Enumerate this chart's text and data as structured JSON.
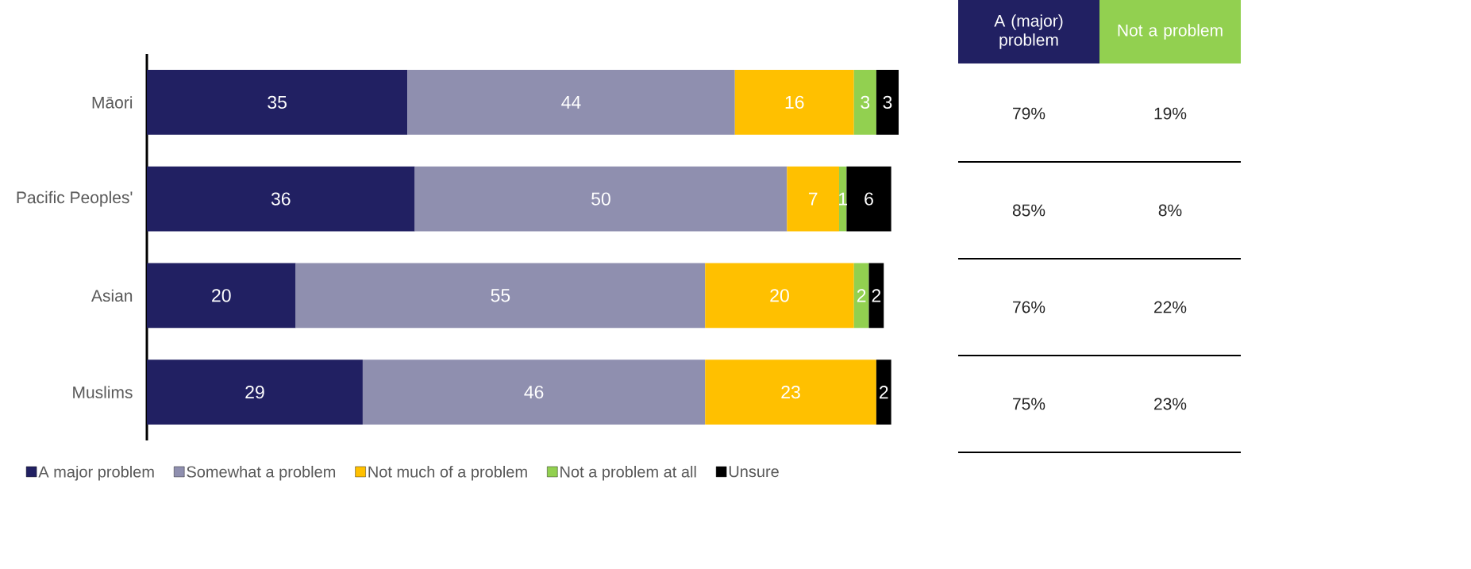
{
  "chart_data": {
    "type": "bar",
    "orientation": "horizontal",
    "stacked": true,
    "data_labels": true,
    "legend": "bottom",
    "tick_labels": "y",
    "categories": [
      "Māori",
      "Pacific Peoples'",
      "Asian",
      "Muslims"
    ],
    "series": [
      {
        "name": "A major problem",
        "color": "#212062",
        "values": [
          35,
          36,
          20,
          29
        ]
      },
      {
        "name": "Somewhat a problem",
        "color": "#8f8faf",
        "values": [
          44,
          50,
          55,
          46
        ]
      },
      {
        "name": "Not much of a problem",
        "color": "#ffc000",
        "values": [
          16,
          7,
          20,
          23
        ]
      },
      {
        "name": "Not a problem at all",
        "color": "#92d050",
        "values": [
          3,
          1,
          2,
          null
        ]
      },
      {
        "name": "Unsure",
        "color": "#000000",
        "values": [
          3,
          6,
          2,
          2
        ]
      }
    ],
    "annotations": [
      "A (major) problem",
      "Not a problem",
      "79%",
      "19%",
      "85%",
      "8%",
      "76%",
      "22%",
      "75%",
      "23%"
    ]
  }
}
